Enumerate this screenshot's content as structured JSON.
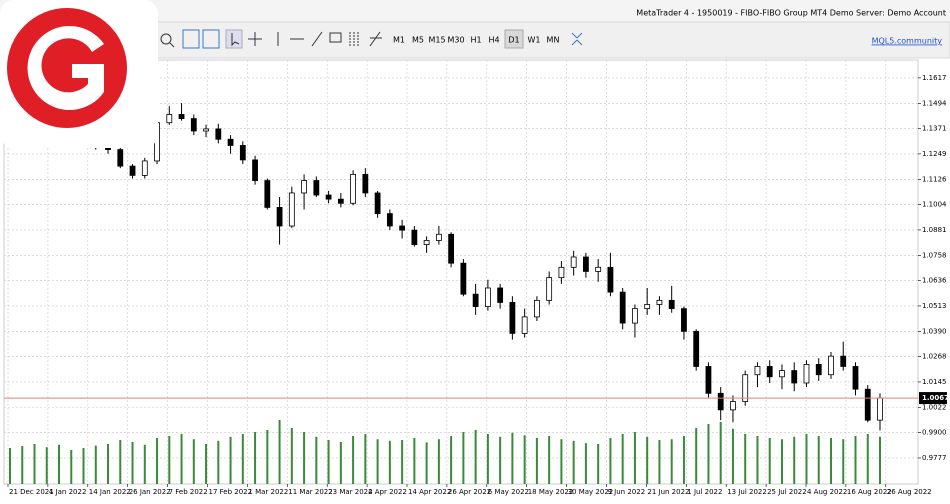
{
  "window": {
    "title": "MetaTrader 4 - 1950019 - FIBO-FIBO Group MT4 Demo Server: Demo Account",
    "link": "MQL5.community",
    "timeframes": [
      "M1",
      "M5",
      "M15",
      "M30",
      "H1",
      "H4",
      "D1",
      "W1",
      "MN"
    ],
    "active_timeframe": "D1"
  },
  "chart_data": {
    "type": "candlestick",
    "bull_color": "#ffffff",
    "bear_color": "#000000",
    "volume_color": "#3a8a3a",
    "price_line_color": "#e8826e",
    "grid": true,
    "xlabels": [
      "21 Dec 2021",
      "4 Jan 2022",
      "14 Jan 2022",
      "26 Jan 2022",
      "7 Feb 2022",
      "17 Feb 2022",
      "1 Mar 2022",
      "11 Mar 2022",
      "23 Mar 2022",
      "4 Apr 2022",
      "14 Apr 2022",
      "26 Apr 2022",
      "6 May 2022",
      "18 May 2022",
      "30 May 2022",
      "9 Jun 2022",
      "21 Jun 2022",
      "1 Jul 2022",
      "13 Jul 2022",
      "25 Jul 2022",
      "4 Aug 2022",
      "16 Aug 2022",
      "26 Aug 2022"
    ],
    "ylim": [
      0.9651,
      1.1694
    ],
    "yticks": [
      1.1617,
      1.1494,
      1.1371,
      1.1249,
      1.1126,
      1.1004,
      1.0881,
      1.0758,
      1.0636,
      1.0513,
      {
        "value": 1.039,
        "label": "1.0390"
      },
      1.0268,
      1.0145,
      1.0022,
      {
        "value": 0.99,
        "label": "0.9900"
      },
      0.9777
    ],
    "current_price": 1.0067,
    "volume_lim": [
      0,
      200000
    ],
    "candles": [
      [
        1.13,
        1.133,
        1.1285,
        1.132
      ],
      [
        1.132,
        1.136,
        1.13,
        1.133
      ],
      [
        1.133,
        1.135,
        1.129,
        1.131
      ],
      [
        1.131,
        1.137,
        1.13,
        1.135
      ],
      [
        1.135,
        1.138,
        1.132,
        1.136
      ],
      [
        1.136,
        1.1375,
        1.131,
        1.132
      ],
      [
        1.132,
        1.135,
        1.129,
        1.13
      ],
      [
        1.13,
        1.133,
        1.127,
        1.129
      ],
      [
        1.129,
        1.13,
        1.125,
        1.127
      ],
      [
        1.127,
        1.128,
        1.118,
        1.119
      ],
      [
        1.119,
        1.12,
        1.113,
        1.1145
      ],
      [
        1.1145,
        1.123,
        1.113,
        1.1215
      ],
      [
        1.1215,
        1.141,
        1.12,
        1.14
      ],
      [
        1.14,
        1.148,
        1.139,
        1.144
      ],
      [
        1.144,
        1.1495,
        1.141,
        1.142
      ],
      [
        1.142,
        1.144,
        1.134,
        1.136
      ],
      [
        1.136,
        1.139,
        1.133,
        1.137
      ],
      [
        1.137,
        1.1395,
        1.13,
        1.132
      ],
      [
        1.132,
        1.134,
        1.125,
        1.129
      ],
      [
        1.129,
        1.131,
        1.12,
        1.122
      ],
      [
        1.122,
        1.124,
        1.11,
        1.112
      ],
      [
        1.112,
        1.113,
        1.098,
        1.099
      ],
      [
        1.099,
        1.104,
        1.081,
        1.09
      ],
      [
        1.09,
        1.109,
        1.089,
        1.106
      ],
      [
        1.106,
        1.115,
        1.098,
        1.112
      ],
      [
        1.112,
        1.114,
        1.104,
        1.105
      ],
      [
        1.105,
        1.107,
        1.101,
        1.103
      ],
      [
        1.103,
        1.106,
        1.099,
        1.101
      ],
      [
        1.101,
        1.117,
        1.1,
        1.115
      ],
      [
        1.115,
        1.118,
        1.104,
        1.106
      ],
      [
        1.106,
        1.107,
        1.094,
        1.096
      ],
      [
        1.096,
        1.098,
        1.088,
        1.09
      ],
      [
        1.09,
        1.093,
        1.084,
        1.088
      ],
      [
        1.088,
        1.09,
        1.08,
        1.081
      ],
      [
        1.081,
        1.085,
        1.077,
        1.083
      ],
      [
        1.083,
        1.09,
        1.081,
        1.086
      ],
      [
        1.086,
        1.087,
        1.07,
        1.072
      ],
      [
        1.072,
        1.074,
        1.056,
        1.057
      ],
      [
        1.057,
        1.062,
        1.047,
        1.051
      ],
      [
        1.051,
        1.064,
        1.049,
        1.06
      ],
      [
        1.06,
        1.062,
        1.05,
        1.053
      ],
      [
        1.053,
        1.056,
        1.035,
        1.038
      ],
      [
        1.038,
        1.05,
        1.036,
        1.046
      ],
      [
        1.046,
        1.056,
        1.044,
        1.054
      ],
      [
        1.054,
        1.068,
        1.052,
        1.065
      ],
      [
        1.065,
        1.073,
        1.062,
        1.07
      ],
      [
        1.07,
        1.078,
        1.066,
        1.075
      ],
      [
        1.075,
        1.077,
        1.065,
        1.068
      ],
      [
        1.068,
        1.074,
        1.063,
        1.07
      ],
      [
        1.07,
        1.077,
        1.056,
        1.058
      ],
      [
        1.058,
        1.06,
        1.04,
        1.043
      ],
      [
        1.043,
        1.052,
        1.036,
        1.05
      ],
      [
        1.05,
        1.06,
        1.047,
        1.052
      ],
      [
        1.052,
        1.056,
        1.047,
        1.054
      ],
      [
        1.054,
        1.061,
        1.048,
        1.05
      ],
      [
        1.05,
        1.051,
        1.035,
        1.039
      ],
      [
        1.039,
        1.04,
        1.02,
        1.022
      ],
      [
        1.022,
        1.024,
        1.007,
        1.009
      ],
      [
        1.009,
        1.012,
        0.996,
        1.001
      ],
      [
        1.001,
        1.008,
        0.995,
        1.005
      ],
      [
        1.005,
        1.02,
        1.003,
        1.018
      ],
      [
        1.018,
        1.024,
        1.012,
        1.022
      ],
      [
        1.022,
        1.025,
        1.014,
        1.017
      ],
      [
        1.017,
        1.023,
        1.011,
        1.02
      ],
      [
        1.02,
        1.024,
        1.01,
        1.014
      ],
      [
        1.014,
        1.025,
        1.012,
        1.023
      ],
      [
        1.023,
        1.026,
        1.015,
        1.018
      ],
      [
        1.018,
        1.029,
        1.016,
        1.027
      ],
      [
        1.027,
        1.034,
        1.02,
        1.022
      ],
      [
        1.022,
        1.024,
        1.008,
        1.011
      ],
      [
        1.011,
        1.013,
        0.995,
        0.996
      ],
      [
        0.996,
        1.009,
        0.991,
        1.0067
      ]
    ],
    "volumes": [
      90000,
      95000,
      100000,
      92000,
      98000,
      85000,
      90000,
      96000,
      100000,
      110000,
      105000,
      98000,
      115000,
      120000,
      125000,
      112000,
      100000,
      108000,
      118000,
      125000,
      130000,
      135000,
      160000,
      140000,
      130000,
      118000,
      110000,
      105000,
      120000,
      125000,
      112000,
      108000,
      110000,
      115000,
      104000,
      112000,
      120000,
      130000,
      135000,
      125000,
      118000,
      128000,
      122000,
      115000,
      120000,
      112000,
      108000,
      102000,
      100000,
      115000,
      125000,
      130000,
      118000,
      110000,
      112000,
      120000,
      140000,
      150000,
      155000,
      138000,
      125000,
      120000,
      115000,
      112000,
      118000,
      125000,
      120000,
      115000,
      112000,
      120000,
      125000,
      118000
    ]
  }
}
